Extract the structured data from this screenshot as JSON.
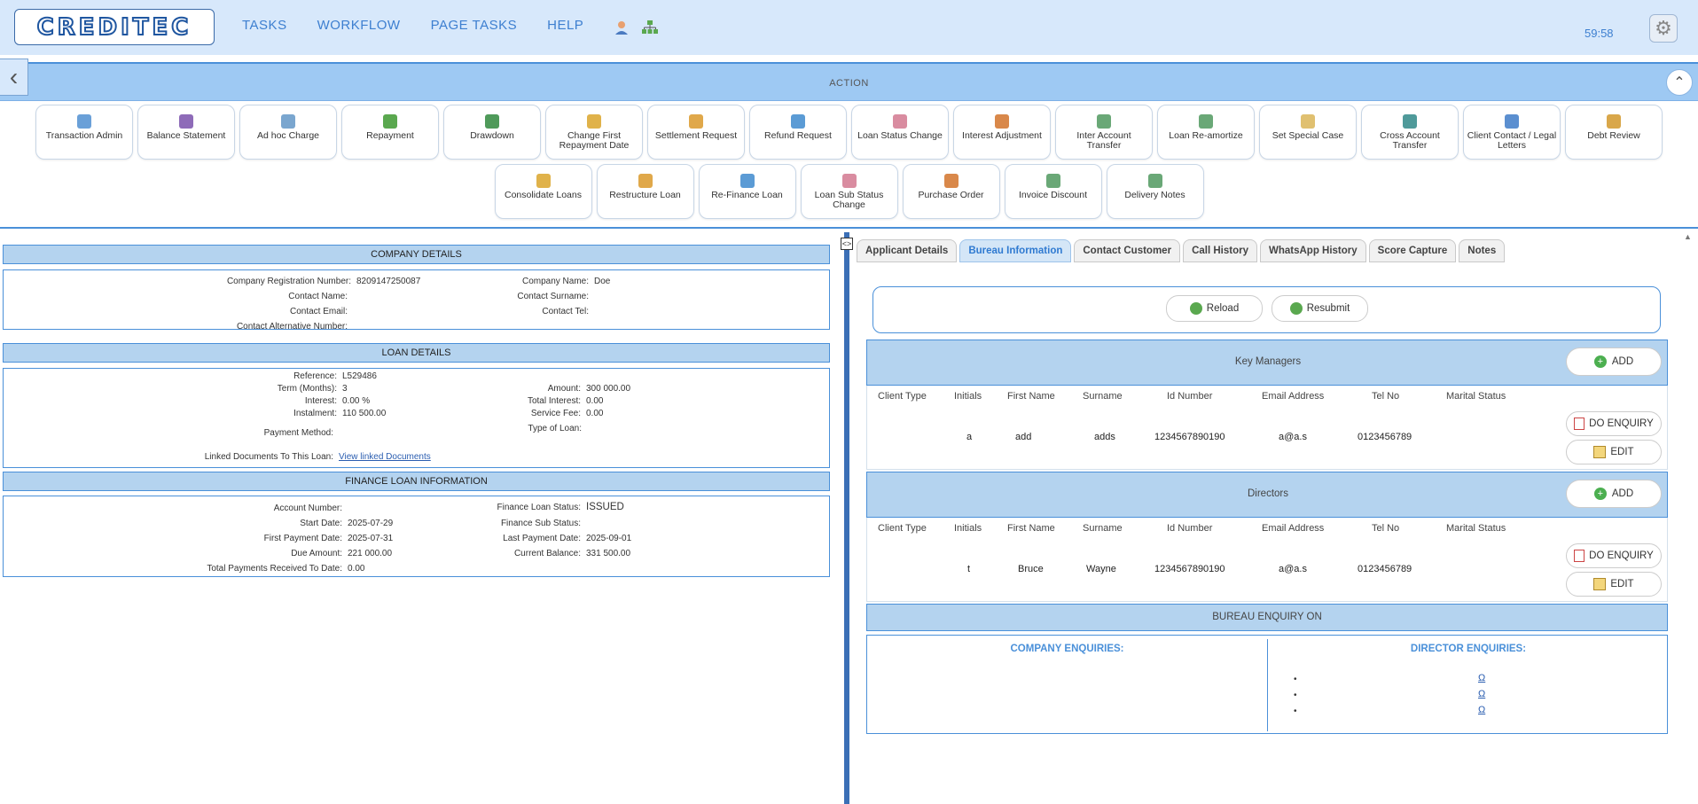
{
  "header": {
    "logo_text": "CREDITEC",
    "nav": [
      "TASKS",
      "WORKFLOW",
      "PAGE TASKS",
      "HELP"
    ],
    "timer": "59:58"
  },
  "action_bar": {
    "label": "ACTION",
    "row1": [
      "Transaction Admin",
      "Balance Statement",
      "Ad hoc Charge",
      "Repayment",
      "Drawdown",
      "Change First Repayment Date",
      "Settlement Request",
      "Refund Request",
      "Loan Status Change",
      "Interest Adjustment",
      "Inter Account Transfer",
      "Loan Re-amortize",
      "Set Special Case",
      "Cross Account Transfer",
      "Client Contact / Legal Letters",
      "Debt Review"
    ],
    "row2": [
      "Consolidate Loans",
      "Restructure Loan",
      "Re-Finance Loan",
      "Loan Sub Status Change",
      "Purchase Order",
      "Invoice Discount",
      "Delivery Notes"
    ]
  },
  "company": {
    "title": "COMPANY DETAILS",
    "reg_label": "Company Registration Number:",
    "reg_value": "8209147250087",
    "name_label": "Company Name:",
    "name_value": "Doe",
    "contact_name_label": "Contact Name:",
    "contact_surname_label": "Contact Surname:",
    "contact_email_label": "Contact Email:",
    "contact_tel_label": "Contact Tel:",
    "contact_alt_label": "Contact Alternative Number:"
  },
  "loan": {
    "title": "LOAN DETAILS",
    "ref_label": "Reference:",
    "ref_value": "L529486",
    "term_label": "Term (Months):",
    "term_value": "3",
    "amount_label": "Amount:",
    "amount_value": "300 000.00",
    "interest_label": "Interest:",
    "interest_value": "0.00 %",
    "total_interest_label": "Total Interest:",
    "total_interest_value": "0.00",
    "instalment_label": "Instalment:",
    "instalment_value": "110 500.00",
    "service_fee_label": "Service Fee:",
    "service_fee_value": "0.00",
    "payment_method_label": "Payment Method:",
    "type_label": "Type of Loan:",
    "linked_label": "Linked Documents To This Loan:",
    "linked_link": "View linked Documents"
  },
  "finance": {
    "title": "FINANCE LOAN INFORMATION",
    "account_label": "Account Number:",
    "status_label": "Finance Loan Status:",
    "status_value": "ISSUED",
    "start_label": "Start Date:",
    "start_value": "2025-07-29",
    "sub_status_label": "Finance Sub Status:",
    "first_pay_label": "First Payment Date:",
    "first_pay_value": "2025-07-31",
    "last_pay_label": "Last Payment Date:",
    "last_pay_value": "2025-09-01",
    "due_label": "Due Amount:",
    "due_value": "221 000.00",
    "balance_label": "Current Balance:",
    "balance_value": "331 500.00",
    "total_recv_label": "Total Payments Received To Date:",
    "total_recv_value": "0.00"
  },
  "tabs": [
    "Applicant Details",
    "Bureau Information",
    "Contact Customer",
    "Call History",
    "WhatsApp History",
    "Score Capture",
    "Notes"
  ],
  "bureau": {
    "reload": "Reload",
    "resubmit": "Resubmit",
    "add": "ADD",
    "do_enquiry": "DO ENQUIRY",
    "edit": "EDIT",
    "columns": [
      "Client Type",
      "Initials",
      "First Name",
      "Surname",
      "Id Number",
      "Email Address",
      "Tel No",
      "Marital Status"
    ],
    "key_managers": {
      "title": "Key Managers",
      "row": {
        "initials": "a",
        "first_name": "add",
        "surname": "adds",
        "id_number": "1234567890190",
        "email": "a@a.s",
        "tel": "0123456789"
      }
    },
    "directors": {
      "title": "Directors",
      "row": {
        "initials": "t",
        "first_name": "Bruce",
        "surname": "Wayne",
        "id_number": "1234567890190",
        "email": "a@a.s",
        "tel": "0123456789"
      }
    },
    "enquiry_title": "BUREAU ENQUIRY ON",
    "company_enquiries": "COMPANY ENQUIRIES:",
    "director_enquiries": "DIRECTOR ENQUIRIES:",
    "director_links": [
      "Ω",
      "Ω",
      "Ω"
    ]
  }
}
